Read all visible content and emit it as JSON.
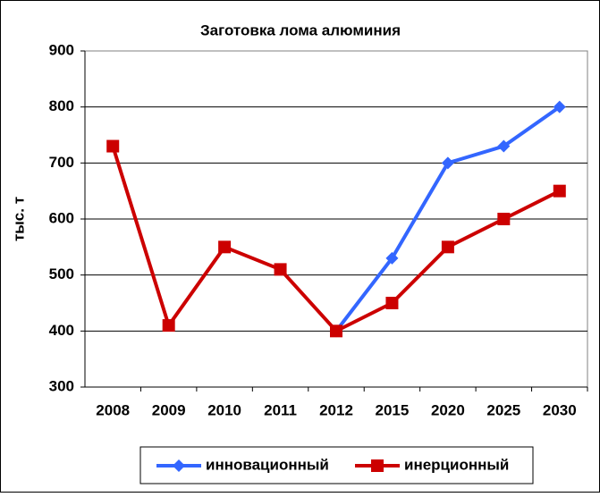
{
  "chart_data": {
    "type": "line",
    "title": "Заготовка лома алюминия",
    "y_label": "тыс. т",
    "categories": [
      "2008",
      "2009",
      "2010",
      "2011",
      "2012",
      "2015",
      "2020",
      "2025",
      "2030"
    ],
    "series": [
      {
        "name": "инновационный",
        "color": "#3366ff",
        "marker": "diamond",
        "values": [
          null,
          null,
          null,
          null,
          400,
          530,
          700,
          730,
          800
        ]
      },
      {
        "name": "инерционный",
        "color": "#cc0000",
        "marker": "square",
        "values": [
          730,
          410,
          550,
          510,
          400,
          450,
          550,
          600,
          650
        ]
      }
    ],
    "ylim": [
      300,
      900
    ],
    "yticks": [
      300,
      400,
      500,
      600,
      700,
      800,
      900
    ],
    "grid": true,
    "legend": "bottom"
  }
}
